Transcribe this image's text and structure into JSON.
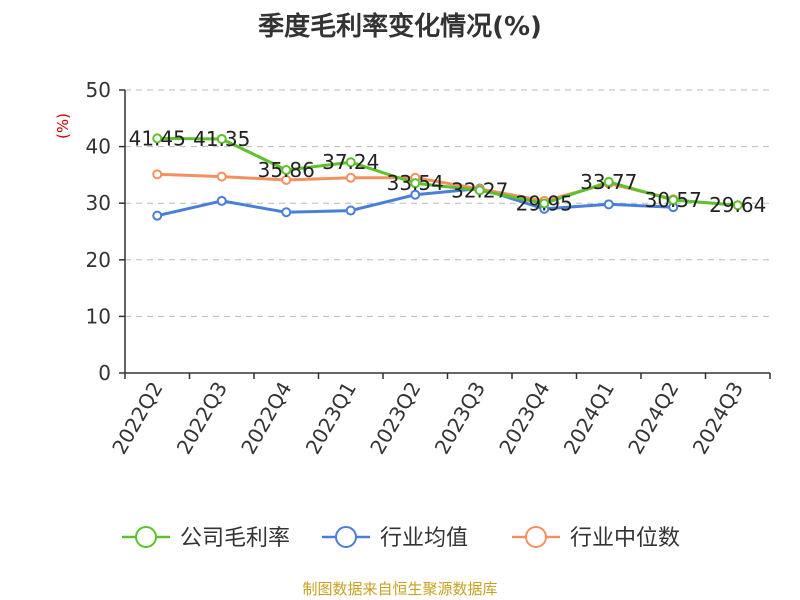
{
  "title": "季度毛利率变化情况(%)",
  "source": "制图数据来自恒生聚源数据库",
  "chart_data": {
    "type": "line",
    "title": "季度毛利率变化情况(%)",
    "ylabel": "(%)",
    "xlabel": "",
    "ylim": [
      0,
      50
    ],
    "yticks": [
      0,
      10,
      20,
      30,
      40,
      50
    ],
    "grid": true,
    "legend_position": "bottom",
    "categories": [
      "2022Q2",
      "2022Q3",
      "2022Q4",
      "2023Q1",
      "2023Q2",
      "2023Q3",
      "2023Q4",
      "2024Q1",
      "2024Q2",
      "2024Q3"
    ],
    "series": [
      {
        "name": "公司毛利率",
        "color": "#5cc12c",
        "values": [
          41.45,
          41.35,
          35.86,
          37.24,
          33.54,
          32.27,
          29.95,
          33.77,
          30.57,
          29.64
        ],
        "labels": [
          "41.45",
          "41.35",
          "35.86",
          "37.24",
          "33.54",
          "32.27",
          "29.95",
          "33.77",
          "30.57",
          "29.64"
        ]
      },
      {
        "name": "行业均值",
        "color": "#4a7fd8",
        "values": [
          27.8,
          30.4,
          28.4,
          28.7,
          31.5,
          32.6,
          29.0,
          29.8,
          29.3,
          null
        ]
      },
      {
        "name": "行业中位数",
        "color": "#f59060",
        "values": [
          35.1,
          34.7,
          34.1,
          34.5,
          34.5,
          32.5,
          30.4,
          33.5,
          30.7,
          null
        ]
      }
    ]
  }
}
